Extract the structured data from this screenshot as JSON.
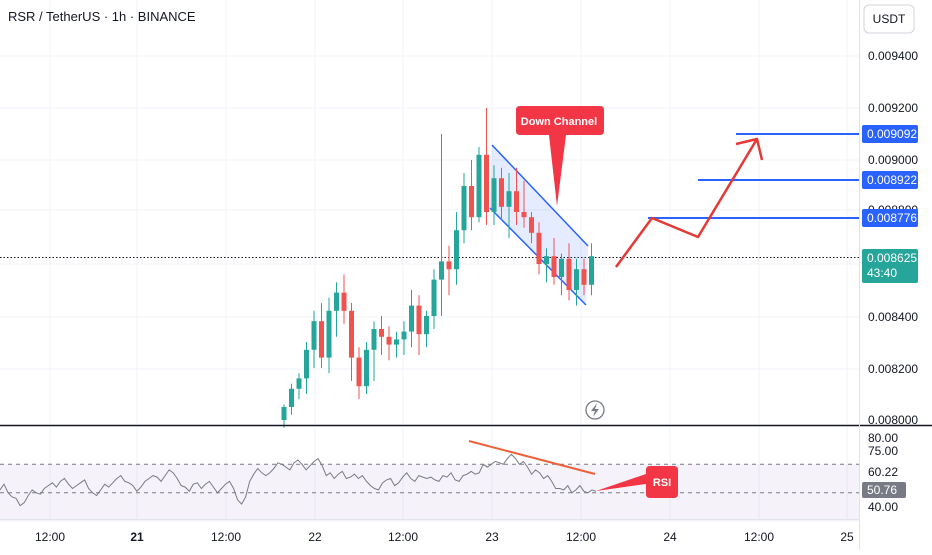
{
  "header": {
    "symbol_title": "RSR / TetherUS · 1h · BINANCE"
  },
  "currency_button": {
    "label": "USDT"
  },
  "price_axis": {
    "ticks": [
      "0.009400",
      "0.009200",
      "0.009000",
      "0.008800",
      "0.008400",
      "0.008200",
      "0.008000"
    ],
    "badges": [
      {
        "label": "0.009092",
        "color": "#2962ff"
      },
      {
        "label": "0.008922",
        "color": "#2962ff"
      },
      {
        "label": "0.008776",
        "color": "#2962ff"
      }
    ],
    "current": {
      "label": "0.008625",
      "countdown": "43:40",
      "color": "#26a69a"
    }
  },
  "rsi_axis": {
    "ticks": [
      "80.00",
      "75.00",
      "60.22",
      "40.00"
    ],
    "current": "50.76"
  },
  "time_axis": {
    "ticks": [
      "12:00",
      "21",
      "12:00",
      "22",
      "12:00",
      "23",
      "12:00",
      "24",
      "12:00",
      "25"
    ]
  },
  "annotations": {
    "down_channel": "Down Channel",
    "rsi": "RSI"
  },
  "colors": {
    "up": "#26a69a",
    "down": "#ef5350",
    "channel": "#2962ff",
    "arrow": "#e53935",
    "rsi_line": "#787b86"
  },
  "chart_data": {
    "type": "candlestick",
    "price_ylim": [
      0.008,
      0.0095
    ],
    "candles": [
      [
        0.008,
        0.00806,
        0.00797,
        0.00805
      ],
      [
        0.00805,
        0.00814,
        0.00802,
        0.00812
      ],
      [
        0.00812,
        0.00818,
        0.00808,
        0.00816
      ],
      [
        0.00816,
        0.0083,
        0.0081,
        0.00827
      ],
      [
        0.00827,
        0.00842,
        0.0082,
        0.00838
      ],
      [
        0.00838,
        0.00845,
        0.0082,
        0.00824
      ],
      [
        0.00824,
        0.00847,
        0.00818,
        0.00842
      ],
      [
        0.00842,
        0.00853,
        0.00832,
        0.00849
      ],
      [
        0.00849,
        0.00856,
        0.00837,
        0.00842
      ],
      [
        0.00842,
        0.00845,
        0.00815,
        0.00824
      ],
      [
        0.00824,
        0.00828,
        0.00808,
        0.00813
      ],
      [
        0.00813,
        0.0083,
        0.0081,
        0.00827
      ],
      [
        0.00827,
        0.00838,
        0.00815,
        0.00835
      ],
      [
        0.00835,
        0.0084,
        0.00825,
        0.00832
      ],
      [
        0.00832,
        0.00836,
        0.00823,
        0.00829
      ],
      [
        0.00829,
        0.00834,
        0.00824,
        0.00831
      ],
      [
        0.00831,
        0.00838,
        0.00825,
        0.00834
      ],
      [
        0.00834,
        0.0085,
        0.00828,
        0.00844
      ],
      [
        0.00844,
        0.00848,
        0.00825,
        0.00833
      ],
      [
        0.00833,
        0.00842,
        0.00828,
        0.0084
      ],
      [
        0.0084,
        0.00858,
        0.00835,
        0.00854
      ],
      [
        0.00854,
        0.0091,
        0.0084,
        0.00861
      ],
      [
        0.00861,
        0.00867,
        0.00848,
        0.00858
      ],
      [
        0.00858,
        0.0088,
        0.00852,
        0.00873
      ],
      [
        0.00873,
        0.00895,
        0.00868,
        0.0089
      ],
      [
        0.0089,
        0.009,
        0.00873,
        0.00878
      ],
      [
        0.00878,
        0.00905,
        0.00876,
        0.00902
      ],
      [
        0.00902,
        0.0092,
        0.00875,
        0.0088
      ],
      [
        0.0088,
        0.00898,
        0.00875,
        0.00893
      ],
      [
        0.00893,
        0.00897,
        0.00877,
        0.00882
      ],
      [
        0.00882,
        0.00895,
        0.0087,
        0.00888
      ],
      [
        0.00888,
        0.00897,
        0.00875,
        0.0088
      ],
      [
        0.0088,
        0.00892,
        0.00874,
        0.00878
      ],
      [
        0.00878,
        0.0088,
        0.00868,
        0.00872
      ],
      [
        0.00872,
        0.00876,
        0.00856,
        0.0086
      ],
      [
        0.0086,
        0.00866,
        0.00853,
        0.00863
      ],
      [
        0.00863,
        0.0087,
        0.00852,
        0.00855
      ],
      [
        0.00855,
        0.00864,
        0.00848,
        0.00862
      ],
      [
        0.00862,
        0.00868,
        0.00846,
        0.0085
      ],
      [
        0.0085,
        0.00862,
        0.00844,
        0.00858
      ],
      [
        0.00858,
        0.00862,
        0.00848,
        0.00852
      ],
      [
        0.00852,
        0.00868,
        0.00848,
        0.00863
      ]
    ],
    "channel_upper": [
      [
        0.00838,
        0.00905
      ],
      [
        0.00856,
        0.0087
      ]
    ],
    "channel_lower": [
      [
        0.00838,
        0.0088
      ],
      [
        0.00856,
        0.00845
      ]
    ],
    "levels": [
      0.009092,
      0.008922,
      0.008776
    ],
    "rsi_ylim": [
      35,
      85
    ],
    "rsi_levels": [
      70,
      50
    ],
    "rsi": [
      52,
      56,
      50,
      47,
      46,
      41,
      43,
      48,
      52,
      50,
      49,
      53,
      55,
      57,
      54,
      58,
      60,
      56,
      53,
      55,
      57,
      59,
      53,
      50,
      48,
      52,
      56,
      54,
      57,
      60,
      62,
      58,
      57,
      55,
      51,
      54,
      58,
      60,
      62,
      61,
      58,
      62,
      66,
      64,
      60,
      55,
      54,
      51,
      56,
      57,
      53,
      56,
      58,
      54,
      50,
      53,
      56,
      58,
      53,
      45,
      42,
      47,
      58,
      63,
      67,
      64,
      62,
      64,
      67,
      71,
      70,
      68,
      66,
      71,
      73,
      70,
      66,
      69,
      72,
      74,
      69,
      62,
      64,
      60,
      63,
      65,
      60,
      61,
      63,
      60,
      62,
      58,
      55,
      53,
      52,
      57,
      59,
      60,
      55,
      57,
      61,
      64,
      60,
      58,
      62,
      61,
      60,
      61,
      59,
      58,
      62,
      61,
      64,
      59,
      58,
      62,
      63,
      65,
      63,
      64,
      70,
      68,
      70,
      72,
      71,
      70,
      74,
      77,
      74,
      70,
      72,
      68,
      63,
      66,
      64,
      60,
      62,
      58,
      53,
      53,
      52,
      55,
      50,
      52,
      55,
      51,
      50,
      52,
      51
    ]
  }
}
